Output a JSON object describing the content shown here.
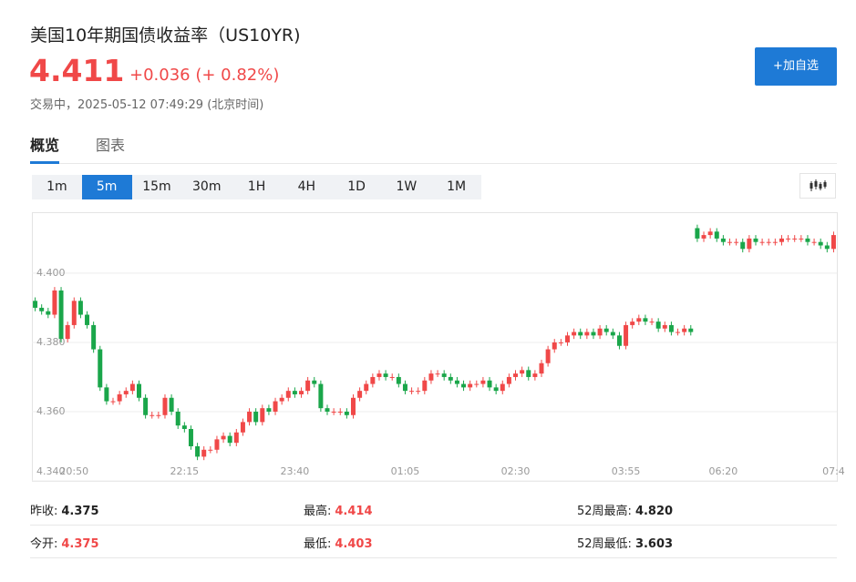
{
  "header": {
    "title": "美国10年期国债收益率（US10YR)",
    "price": "4.411",
    "change": "+0.036 (+ 0.82%)",
    "time": "交易中，2025-05-12 07:49:29 (北京时间)"
  },
  "button": "+加自选",
  "tabs": {
    "items": [
      "概览",
      "图表"
    ],
    "active": 0
  },
  "intervals": {
    "items": [
      "1m",
      "5m",
      "15m",
      "30m",
      "1H",
      "4H",
      "1D",
      "1W",
      "1M"
    ],
    "selected": 1
  },
  "chart_data": {
    "type": "candlestick",
    "up_color": "#f04848",
    "down_color": "#1aa64a",
    "grid": true,
    "ylim": [
      4.34,
      4.4176
    ],
    "yticks": [
      {
        "value": 4.34,
        "label": "4.340"
      },
      {
        "value": 4.36,
        "label": "4.360"
      },
      {
        "value": 4.38,
        "label": "4.380"
      },
      {
        "value": 4.4,
        "label": "4.400"
      }
    ],
    "categories": [
      null,
      null,
      null,
      null,
      null,
      null,
      "20:50",
      null,
      null,
      null,
      null,
      null,
      null,
      null,
      null,
      null,
      null,
      null,
      null,
      null,
      null,
      null,
      null,
      "22:15",
      null,
      null,
      null,
      null,
      null,
      null,
      null,
      null,
      null,
      null,
      null,
      null,
      null,
      null,
      null,
      null,
      "23:40",
      null,
      null,
      null,
      null,
      null,
      null,
      null,
      null,
      null,
      null,
      null,
      null,
      null,
      null,
      null,
      null,
      "01:05",
      null,
      null,
      null,
      null,
      null,
      null,
      null,
      null,
      null,
      null,
      null,
      null,
      null,
      null,
      null,
      null,
      "02:30",
      null,
      null,
      null,
      null,
      null,
      null,
      null,
      null,
      null,
      null,
      null,
      null,
      null,
      null,
      null,
      null,
      "03:55",
      null,
      null,
      null,
      null,
      null,
      null,
      null,
      null,
      null,
      null,
      null,
      null,
      null,
      null,
      "06:20",
      null,
      null,
      null,
      null,
      null,
      null,
      null,
      null,
      null,
      null,
      null,
      null,
      null,
      null,
      null,
      null,
      "07:4"
    ],
    "open": [
      4.392,
      4.39,
      4.389,
      4.388,
      4.395,
      4.381,
      4.385,
      4.392,
      4.388,
      4.385,
      4.378,
      4.367,
      4.363,
      4.363,
      4.365,
      4.366,
      4.368,
      4.364,
      4.359,
      4.359,
      4.359,
      4.364,
      4.36,
      4.356,
      4.355,
      4.35,
      4.347,
      4.349,
      4.349,
      4.352,
      4.353,
      4.351,
      4.354,
      4.357,
      4.36,
      4.357,
      4.361,
      4.36,
      4.363,
      4.364,
      4.366,
      4.365,
      4.366,
      4.369,
      4.368,
      4.361,
      4.36,
      4.36,
      4.36,
      4.359,
      4.364,
      4.366,
      4.368,
      4.37,
      4.371,
      4.37,
      4.37,
      4.368,
      4.366,
      4.366,
      4.366,
      4.369,
      4.371,
      4.371,
      4.37,
      4.369,
      4.368,
      4.367,
      4.368,
      4.368,
      4.369,
      4.367,
      4.366,
      4.368,
      4.37,
      4.371,
      4.372,
      4.37,
      4.371,
      4.374,
      4.378,
      4.38,
      4.38,
      4.382,
      4.383,
      4.382,
      4.383,
      4.382,
      4.384,
      4.383,
      4.382,
      4.379,
      4.385,
      4.386,
      4.387,
      4.386,
      4.386,
      4.384,
      4.385,
      4.383,
      4.383,
      4.384,
      4.413,
      4.41,
      4.411,
      4.412,
      4.41,
      4.409,
      4.409,
      4.409,
      4.407,
      4.41,
      4.409,
      4.409,
      4.409,
      4.409,
      4.41,
      4.41,
      4.41,
      4.41,
      4.409,
      4.409,
      4.408,
      4.407
    ],
    "high": [
      4.393,
      4.391,
      4.39,
      4.396,
      4.396,
      4.386,
      4.393,
      4.393,
      4.389,
      4.386,
      4.379,
      4.368,
      4.364,
      4.366,
      4.367,
      4.369,
      4.369,
      4.365,
      4.36,
      4.36,
      4.365,
      4.365,
      4.361,
      4.357,
      4.356,
      4.351,
      4.35,
      4.35,
      4.353,
      4.354,
      4.354,
      4.355,
      4.358,
      4.361,
      4.361,
      4.362,
      4.362,
      4.364,
      4.365,
      4.367,
      4.367,
      4.367,
      4.37,
      4.37,
      4.369,
      4.362,
      4.361,
      4.361,
      4.361,
      4.365,
      4.367,
      4.369,
      4.371,
      4.372,
      4.372,
      4.371,
      4.371,
      4.369,
      4.367,
      4.367,
      4.37,
      4.372,
      4.372,
      4.372,
      4.371,
      4.37,
      4.369,
      4.369,
      4.369,
      4.37,
      4.37,
      4.368,
      4.369,
      4.371,
      4.372,
      4.373,
      4.373,
      4.372,
      4.375,
      4.379,
      4.381,
      4.381,
      4.383,
      4.384,
      4.384,
      4.384,
      4.384,
      4.385,
      4.385,
      4.384,
      4.383,
      4.386,
      4.387,
      4.388,
      4.388,
      4.387,
      4.387,
      4.386,
      4.386,
      4.384,
      4.385,
      4.385,
      4.414,
      4.412,
      4.413,
      4.413,
      4.411,
      4.41,
      4.41,
      4.41,
      4.411,
      4.411,
      4.41,
      4.41,
      4.41,
      4.411,
      4.411,
      4.411,
      4.411,
      4.411,
      4.41,
      4.41,
      4.409,
      4.412
    ],
    "low": [
      4.389,
      4.388,
      4.387,
      4.387,
      4.38,
      4.38,
      4.384,
      4.387,
      4.384,
      4.377,
      4.366,
      4.362,
      4.362,
      4.362,
      4.364,
      4.365,
      4.363,
      4.358,
      4.358,
      4.358,
      4.358,
      4.359,
      4.355,
      4.354,
      4.349,
      4.346,
      4.346,
      4.348,
      4.348,
      4.351,
      4.35,
      4.35,
      4.353,
      4.356,
      4.356,
      4.356,
      4.359,
      4.359,
      4.362,
      4.363,
      4.364,
      4.364,
      4.365,
      4.367,
      4.36,
      4.359,
      4.359,
      4.359,
      4.358,
      4.358,
      4.363,
      4.365,
      4.367,
      4.369,
      4.369,
      4.369,
      4.367,
      4.365,
      4.365,
      4.365,
      4.365,
      4.368,
      4.37,
      4.369,
      4.368,
      4.367,
      4.366,
      4.366,
      4.367,
      4.367,
      4.366,
      4.365,
      4.365,
      4.367,
      4.369,
      4.37,
      4.369,
      4.369,
      4.37,
      4.373,
      4.377,
      4.379,
      4.379,
      4.381,
      4.381,
      4.381,
      4.381,
      4.381,
      4.382,
      4.381,
      4.378,
      4.378,
      4.384,
      4.385,
      4.385,
      4.385,
      4.383,
      4.383,
      4.382,
      4.382,
      4.382,
      4.382,
      4.409,
      4.409,
      4.41,
      4.409,
      4.408,
      4.408,
      4.408,
      4.406,
      4.406,
      4.408,
      4.408,
      4.408,
      4.408,
      4.408,
      4.409,
      4.409,
      4.409,
      4.408,
      4.408,
      4.407,
      4.406,
      4.406
    ],
    "close": [
      4.39,
      4.389,
      4.388,
      4.395,
      4.381,
      4.385,
      4.392,
      4.388,
      4.385,
      4.378,
      4.367,
      4.363,
      4.363,
      4.365,
      4.366,
      4.368,
      4.364,
      4.359,
      4.359,
      4.359,
      4.364,
      4.36,
      4.356,
      4.355,
      4.35,
      4.347,
      4.349,
      4.349,
      4.352,
      4.353,
      4.351,
      4.354,
      4.357,
      4.36,
      4.357,
      4.361,
      4.36,
      4.363,
      4.364,
      4.366,
      4.365,
      4.366,
      4.369,
      4.368,
      4.361,
      4.36,
      4.36,
      4.36,
      4.359,
      4.364,
      4.366,
      4.368,
      4.37,
      4.371,
      4.37,
      4.37,
      4.368,
      4.366,
      4.366,
      4.366,
      4.369,
      4.371,
      4.371,
      4.37,
      4.369,
      4.368,
      4.367,
      4.368,
      4.368,
      4.369,
      4.367,
      4.366,
      4.368,
      4.37,
      4.371,
      4.372,
      4.37,
      4.371,
      4.374,
      4.378,
      4.38,
      4.38,
      4.382,
      4.383,
      4.382,
      4.383,
      4.382,
      4.384,
      4.383,
      4.382,
      4.379,
      4.385,
      4.386,
      4.387,
      4.386,
      4.386,
      4.384,
      4.385,
      4.383,
      4.383,
      4.384,
      4.383,
      4.41,
      4.411,
      4.412,
      4.41,
      4.409,
      4.409,
      4.409,
      4.407,
      4.41,
      4.409,
      4.409,
      4.409,
      4.409,
      4.41,
      4.41,
      4.41,
      4.41,
      4.409,
      4.409,
      4.408,
      4.407,
      4.411
    ]
  },
  "stats": [
    [
      {
        "label": "昨收:",
        "value": "4.375",
        "color": "#222222"
      },
      {
        "label": "最高:",
        "value": "4.414",
        "color": "#f04848"
      },
      {
        "label": "52周最高:",
        "value": "4.820",
        "color": "#222222"
      }
    ],
    [
      {
        "label": "今开:",
        "value": "4.375",
        "color": "#f04848"
      },
      {
        "label": "最低:",
        "value": "4.403",
        "color": "#f04848"
      },
      {
        "label": "52周最低:",
        "value": "3.603",
        "color": "#222222"
      }
    ]
  ]
}
